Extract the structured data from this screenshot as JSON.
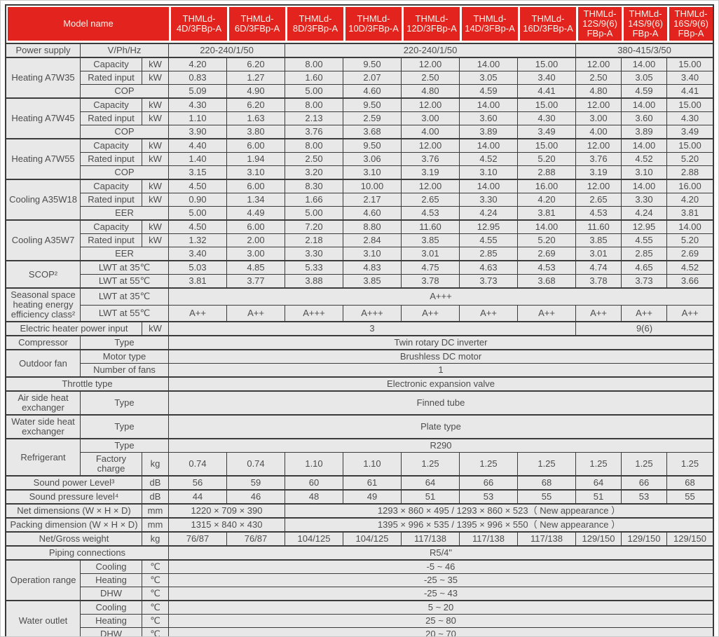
{
  "colors": {
    "header_bg": "#e2231e",
    "header_text": "#f9f4ec",
    "cell_bg": "#e8e8e8",
    "border": "#3b3b3b",
    "text": "#4d4d4d"
  },
  "table": {
    "header": {
      "model_name_label": "Model name",
      "models": [
        "THMLd-\n4D/3FBp-A",
        "THMLd-\n6D/3FBp-A",
        "THMLd-\n8D/3FBp-A",
        "THMLd-\n10D/3FBp-A",
        "THMLd-\n12D/3FBp-A",
        "THMLd-\n14D/3FBp-A",
        "THMLd-\n16D/3FBp-A",
        "THMLd-\n12S/9(6)\nFBp-A",
        "THMLd-\n14S/9(6)\nFBp-A",
        "THMLd-\n16S/9(6)\nFBp-A"
      ]
    },
    "rows": [
      {
        "s": true,
        "top": true,
        "cells": [
          {
            "t": "Power supply",
            "k": "g"
          },
          {
            "t": "V/Ph/Hz",
            "c": 2,
            "k": "s"
          },
          {
            "t": "220-240/1/50",
            "c": 2
          },
          {
            "t": "220-240/1/50",
            "c": 5
          },
          {
            "t": "380-415/3/50",
            "c": 3
          }
        ]
      },
      {
        "s": true,
        "cells": [
          {
            "t": "Heating A7W35",
            "r": 3,
            "k": "g"
          },
          {
            "t": "Capacity",
            "k": "s"
          },
          {
            "t": "kW",
            "k": "u"
          },
          "4.20",
          "6.20",
          "8.00",
          "9.50",
          "12.00",
          "14.00",
          "15.00",
          "12.00",
          "14.00",
          "15.00"
        ]
      },
      {
        "cells": [
          {
            "t": "Rated input",
            "k": "s"
          },
          {
            "t": "kW",
            "k": "u"
          },
          "0.83",
          "1.27",
          "1.60",
          "2.07",
          "2.50",
          "3.05",
          "3.40",
          "2.50",
          "3.05",
          "3.40"
        ]
      },
      {
        "cells": [
          {
            "t": "COP",
            "c": 2,
            "k": "s"
          },
          "5.09",
          "4.90",
          "5.00",
          "4.60",
          "4.80",
          "4.59",
          "4.41",
          "4.80",
          "4.59",
          "4.41"
        ]
      },
      {
        "s": true,
        "cells": [
          {
            "t": "Heating A7W45",
            "r": 3,
            "k": "g"
          },
          {
            "t": "Capacity",
            "k": "s"
          },
          {
            "t": "kW",
            "k": "u"
          },
          "4.30",
          "6.20",
          "8.00",
          "9.50",
          "12.00",
          "14.00",
          "15.00",
          "12.00",
          "14.00",
          "15.00"
        ]
      },
      {
        "cells": [
          {
            "t": "Rated input",
            "k": "s"
          },
          {
            "t": "kW",
            "k": "u"
          },
          "1.10",
          "1.63",
          "2.13",
          "2.59",
          "3.00",
          "3.60",
          "4.30",
          "3.00",
          "3.60",
          "4.30"
        ]
      },
      {
        "cells": [
          {
            "t": "COP",
            "c": 2,
            "k": "s"
          },
          "3.90",
          "3.80",
          "3.76",
          "3.68",
          "4.00",
          "3.89",
          "3.49",
          "4.00",
          "3.89",
          "3.49"
        ]
      },
      {
        "s": true,
        "cells": [
          {
            "t": "Heating A7W55",
            "r": 3,
            "k": "g"
          },
          {
            "t": "Capacity",
            "k": "s"
          },
          {
            "t": "kW",
            "k": "u"
          },
          "4.40",
          "6.00",
          "8.00",
          "9.50",
          "12.00",
          "14.00",
          "15.00",
          "12.00",
          "14.00",
          "15.00"
        ]
      },
      {
        "cells": [
          {
            "t": "Rated input",
            "k": "s"
          },
          {
            "t": "kW",
            "k": "u"
          },
          "1.40",
          "1.94",
          "2.50",
          "3.06",
          "3.76",
          "4.52",
          "5.20",
          "3.76",
          "4.52",
          "5.20"
        ]
      },
      {
        "cells": [
          {
            "t": "COP",
            "c": 2,
            "k": "s"
          },
          "3.15",
          "3.10",
          "3.20",
          "3.10",
          "3.19",
          "3.10",
          "2.88",
          "3.19",
          "3.10",
          "2.88"
        ]
      },
      {
        "s": true,
        "cells": [
          {
            "t": "Cooling A35W18",
            "r": 3,
            "k": "g"
          },
          {
            "t": "Capacity",
            "k": "s"
          },
          {
            "t": "kW",
            "k": "u"
          },
          "4.50",
          "6.00",
          "8.30",
          "10.00",
          "12.00",
          "14.00",
          "16.00",
          "12.00",
          "14.00",
          "16.00"
        ]
      },
      {
        "cells": [
          {
            "t": "Rated input",
            "k": "s"
          },
          {
            "t": "kW",
            "k": "u"
          },
          "0.90",
          "1.34",
          "1.66",
          "2.17",
          "2.65",
          "3.30",
          "4.20",
          "2.65",
          "3.30",
          "4.20"
        ]
      },
      {
        "cells": [
          {
            "t": "EER",
            "c": 2,
            "k": "s"
          },
          "5.00",
          "4.49",
          "5.00",
          "4.60",
          "4.53",
          "4.24",
          "3.81",
          "4.53",
          "4.24",
          "3.81"
        ]
      },
      {
        "s": true,
        "cells": [
          {
            "t": "Cooling A35W7",
            "r": 3,
            "k": "g"
          },
          {
            "t": "Capacity",
            "k": "s"
          },
          {
            "t": "kW",
            "k": "u"
          },
          "4.50",
          "6.00",
          "7.20",
          "8.80",
          "11.60",
          "12.95",
          "14.00",
          "11.60",
          "12.95",
          "14.00"
        ]
      },
      {
        "cells": [
          {
            "t": "Rated input",
            "k": "s"
          },
          {
            "t": "kW",
            "k": "u"
          },
          "1.32",
          "2.00",
          "2.18",
          "2.84",
          "3.85",
          "4.55",
          "5.20",
          "3.85",
          "4.55",
          "5.20"
        ]
      },
      {
        "cells": [
          {
            "t": "EER",
            "c": 2,
            "k": "s"
          },
          "3.40",
          "3.00",
          "3.30",
          "3.10",
          "3.01",
          "2.85",
          "2.69",
          "3.01",
          "2.85",
          "2.69"
        ]
      },
      {
        "s": true,
        "cells": [
          {
            "t": "SCOP²",
            "r": 2,
            "k": "g"
          },
          {
            "t": "LWT at 35℃",
            "c": 2,
            "k": "s"
          },
          "5.03",
          "4.85",
          "5.33",
          "4.83",
          "4.75",
          "4.63",
          "4.53",
          "4.74",
          "4.65",
          "4.52"
        ]
      },
      {
        "cells": [
          {
            "t": "LWT at 55℃",
            "c": 2,
            "k": "s"
          },
          "3.81",
          "3.77",
          "3.88",
          "3.85",
          "3.78",
          "3.73",
          "3.68",
          "3.78",
          "3.73",
          "3.66"
        ]
      },
      {
        "s": true,
        "cells": [
          {
            "t": "Seasonal space heating energy efficiency class²",
            "r": 2,
            "k": "g"
          },
          {
            "t": "LWT at 35℃",
            "c": 2,
            "k": "s"
          },
          {
            "t": "A+++",
            "c": 10
          }
        ]
      },
      {
        "cells": [
          {
            "t": "LWT at 55℃",
            "c": 2,
            "k": "s"
          },
          "A++",
          "A++",
          "A+++",
          "A+++",
          "A++",
          "A++",
          "A++",
          "A++",
          "A++",
          "A++"
        ]
      },
      {
        "s": true,
        "cells": [
          {
            "t": "Electric heater power input",
            "c": 2,
            "k": "g"
          },
          {
            "t": "kW",
            "k": "u"
          },
          {
            "t": "3",
            "c": 7
          },
          {
            "t": "9(6)",
            "c": 3
          }
        ]
      },
      {
        "s": true,
        "cells": [
          {
            "t": "Compressor",
            "k": "g"
          },
          {
            "t": "Type",
            "c": 2,
            "k": "s"
          },
          {
            "t": "Twin rotary DC inverter",
            "c": 10
          }
        ]
      },
      {
        "s": true,
        "cells": [
          {
            "t": "Outdoor fan",
            "r": 2,
            "k": "g"
          },
          {
            "t": "Motor type",
            "c": 2,
            "k": "s"
          },
          {
            "t": "Brushless DC motor",
            "c": 10
          }
        ]
      },
      {
        "cells": [
          {
            "t": "Number of fans",
            "c": 2,
            "k": "s"
          },
          {
            "t": "1",
            "c": 10
          }
        ]
      },
      {
        "s": true,
        "cells": [
          {
            "t": "Throttle type",
            "c": 3,
            "k": "g"
          },
          {
            "t": "Electronic expansion valve",
            "c": 10
          }
        ]
      },
      {
        "s": true,
        "cells": [
          {
            "t": "Air side heat exchanger",
            "k": "g"
          },
          {
            "t": "Type",
            "c": 2,
            "k": "s"
          },
          {
            "t": "Finned tube",
            "c": 10
          }
        ]
      },
      {
        "s": true,
        "cells": [
          {
            "t": "Water side heat exchanger",
            "k": "g"
          },
          {
            "t": "Type",
            "c": 2,
            "k": "s"
          },
          {
            "t": "Plate type",
            "c": 10
          }
        ]
      },
      {
        "s": true,
        "cells": [
          {
            "t": "Refrigerant",
            "r": 2,
            "k": "g"
          },
          {
            "t": "Type",
            "c": 2,
            "k": "s"
          },
          {
            "t": "R290",
            "c": 10
          }
        ]
      },
      {
        "cells": [
          {
            "t": "Factory charge",
            "k": "s"
          },
          {
            "t": "kg",
            "k": "u"
          },
          "0.74",
          "0.74",
          "1.10",
          "1.10",
          "1.25",
          "1.25",
          "1.25",
          "1.25",
          "1.25",
          "1.25"
        ]
      },
      {
        "s": true,
        "cells": [
          {
            "t": "Sound power Level³",
            "c": 2,
            "k": "g"
          },
          {
            "t": "dB",
            "k": "u"
          },
          "56",
          "59",
          "60",
          "61",
          "64",
          "66",
          "68",
          "64",
          "66",
          "68"
        ]
      },
      {
        "s": true,
        "cells": [
          {
            "t": "Sound pressure level⁴",
            "c": 2,
            "k": "g"
          },
          {
            "t": "dB",
            "k": "u"
          },
          "44",
          "46",
          "48",
          "49",
          "51",
          "53",
          "55",
          "51",
          "53",
          "55"
        ]
      },
      {
        "s": true,
        "cells": [
          {
            "t": "Net dimensions (W × H × D)",
            "c": 2,
            "k": "g"
          },
          {
            "t": "mm",
            "k": "u"
          },
          {
            "t": "1220 × 709 × 390",
            "c": 2
          },
          {
            "t": "1293 × 860 × 495 / 1293 × 860 × 523（ New appearance ）",
            "c": 8
          }
        ]
      },
      {
        "s": true,
        "cells": [
          {
            "t": "Packing dimension (W × H × D)",
            "c": 2,
            "k": "g"
          },
          {
            "t": "mm",
            "k": "u"
          },
          {
            "t": "1315 × 840 × 430",
            "c": 2
          },
          {
            "t": "1395 × 996 × 535 / 1395 × 996 × 550（ New appearance ）",
            "c": 8
          }
        ]
      },
      {
        "s": true,
        "cells": [
          {
            "t": "Net/Gross weight",
            "c": 2,
            "k": "g"
          },
          {
            "t": "kg",
            "k": "u"
          },
          "76/87",
          "76/87",
          "104/125",
          "104/125",
          "117/138",
          "117/138",
          "117/138",
          "129/150",
          "129/150",
          "129/150"
        ]
      },
      {
        "s": true,
        "cells": [
          {
            "t": "Piping connections",
            "c": 3,
            "k": "g"
          },
          {
            "t": "R5/4\"",
            "c": 10
          }
        ]
      },
      {
        "s": true,
        "cells": [
          {
            "t": "Operation range",
            "r": 3,
            "k": "g"
          },
          {
            "t": "Cooling",
            "k": "s"
          },
          {
            "t": "℃",
            "k": "u"
          },
          {
            "t": "-5 ~ 46",
            "c": 10
          }
        ]
      },
      {
        "cells": [
          {
            "t": "Heating",
            "k": "s"
          },
          {
            "t": "℃",
            "k": "u"
          },
          {
            "t": "-25 ~ 35",
            "c": 10
          }
        ]
      },
      {
        "cells": [
          {
            "t": "DHW",
            "k": "s"
          },
          {
            "t": "℃",
            "k": "u"
          },
          {
            "t": "-25 ~ 43",
            "c": 10
          }
        ]
      },
      {
        "s": true,
        "cells": [
          {
            "t": "Water outlet",
            "r": 3,
            "k": "g"
          },
          {
            "t": "Cooling",
            "k": "s"
          },
          {
            "t": "℃",
            "k": "u"
          },
          {
            "t": "5 ~ 20",
            "c": 10
          }
        ]
      },
      {
        "cells": [
          {
            "t": "Heating",
            "k": "s"
          },
          {
            "t": "℃",
            "k": "u"
          },
          {
            "t": "25 ~ 80",
            "c": 10
          }
        ]
      },
      {
        "cells": [
          {
            "t": "DHW",
            "k": "s"
          },
          {
            "t": "℃",
            "k": "u"
          },
          {
            "t": "20 ~ 70",
            "c": 10
          }
        ]
      }
    ]
  }
}
